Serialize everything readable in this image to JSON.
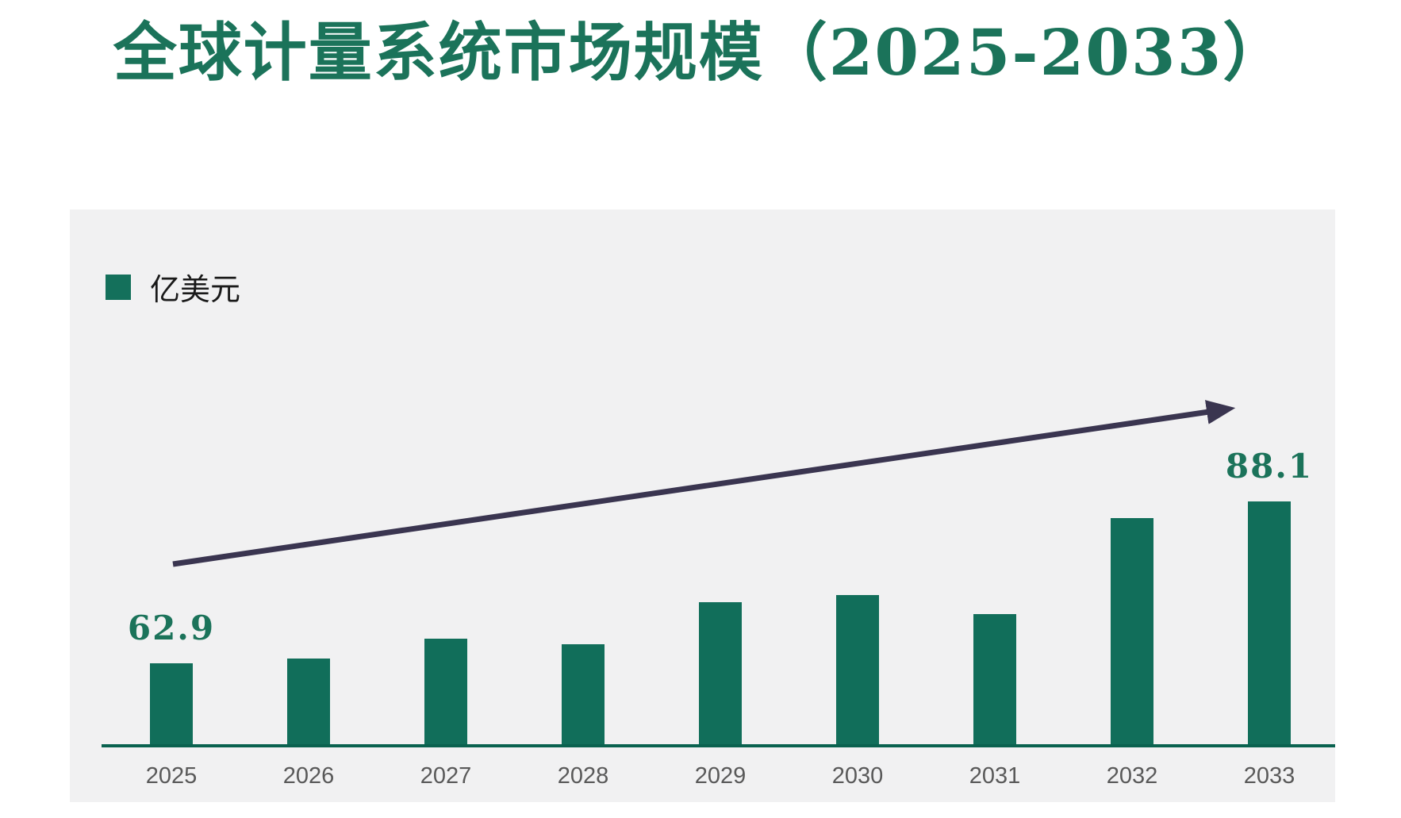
{
  "page": {
    "background": "#ffffff"
  },
  "chart_data": {
    "type": "bar",
    "title": "全球计量系统市场规模（2025-2033）",
    "categories": [
      "2025",
      "2026",
      "2027",
      "2028",
      "2029",
      "2030",
      "2031",
      "2032",
      "2033"
    ],
    "series": [
      {
        "name": "亿美元",
        "values": [
          62.9,
          63.6,
          66.7,
          65.9,
          72.4,
          73.5,
          70.5,
          85.5,
          88.1
        ]
      }
    ],
    "data_labels": [
      "62.9",
      "",
      "",
      "",
      "",
      "",
      "",
      "",
      "88.1"
    ],
    "legend": {
      "label": "亿美元",
      "position": "top-left",
      "marker": "square"
    },
    "xlabel": "",
    "ylabel": "",
    "ylim": [
      50,
      95
    ],
    "grid": false,
    "annotations": {
      "trend_arrow": true
    },
    "colors": {
      "bar": "#116e5a",
      "title": "#1b735a",
      "value_label": "#1b735a",
      "axis_line": "#0a624f",
      "x_label": "#595959",
      "panel_bg": "#f1f1f2",
      "arrow": "#3a3550",
      "legend_text": "#1a1a1a",
      "legend_swatch": "#14705b"
    }
  }
}
